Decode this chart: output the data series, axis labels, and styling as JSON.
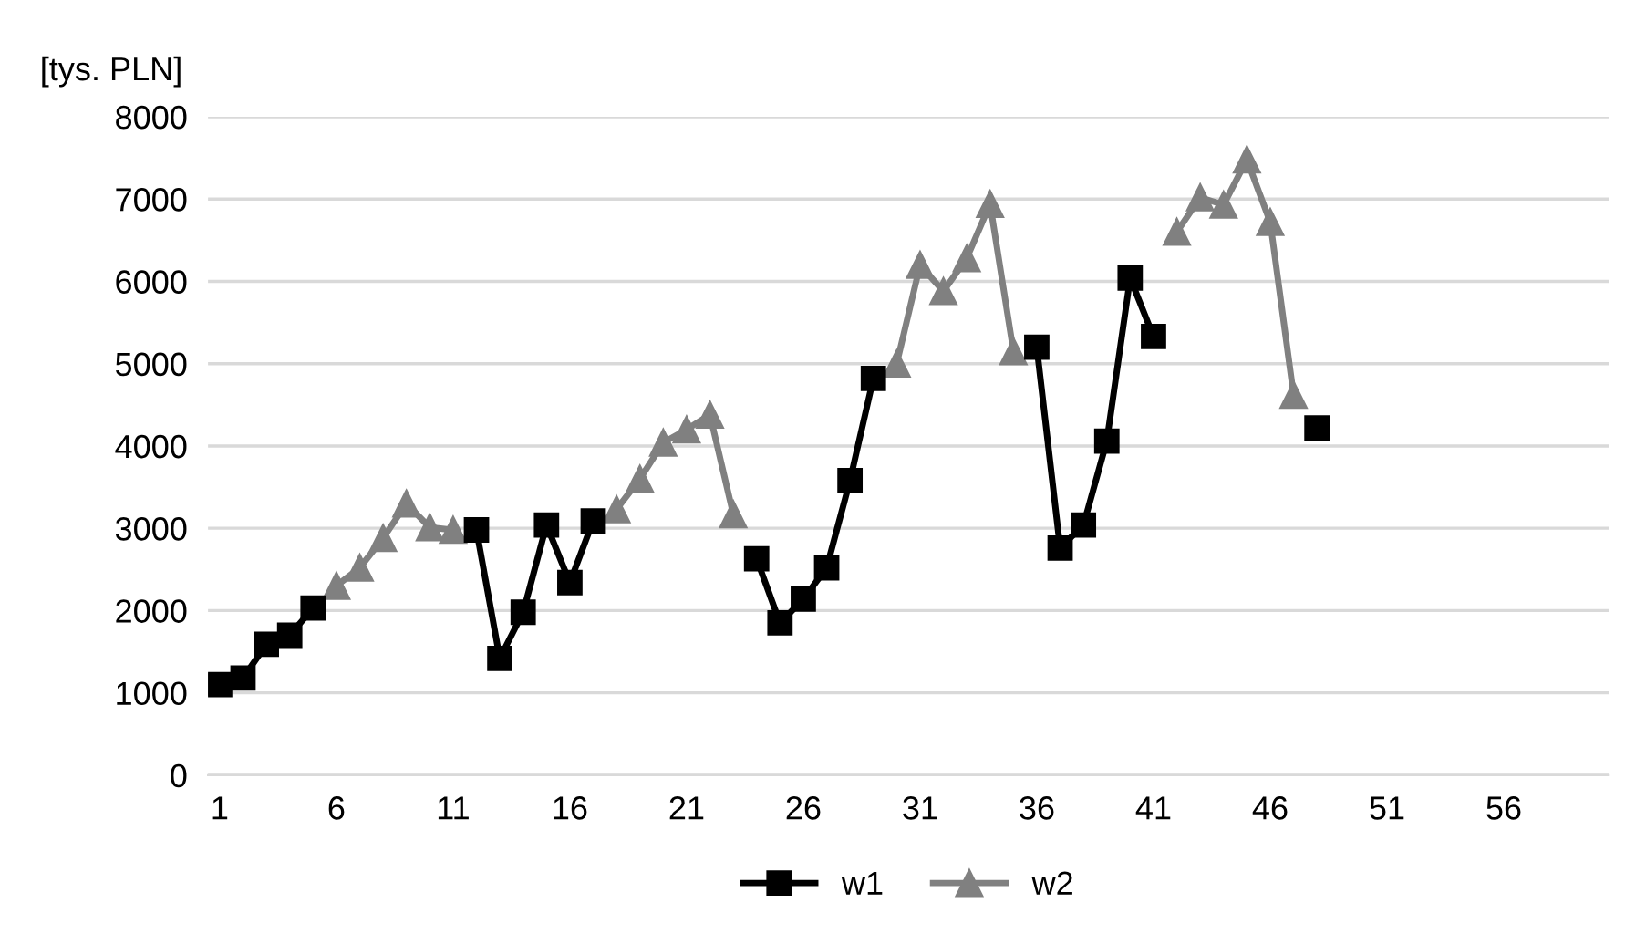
{
  "chart_data": {
    "type": "line",
    "ylabel": "[tys. PLN]",
    "categories": [
      "1",
      null,
      null,
      null,
      null,
      "6",
      null,
      null,
      null,
      null,
      "11",
      null,
      null,
      null,
      null,
      "16",
      null,
      null,
      null,
      null,
      "21",
      null,
      null,
      null,
      null,
      "26",
      null,
      null,
      null,
      null,
      "31",
      null,
      null,
      null,
      null,
      "36",
      null,
      null,
      null,
      null,
      "41",
      null,
      null,
      null,
      null,
      "46",
      null,
      null,
      null,
      null,
      "51",
      null,
      null,
      null,
      null,
      "56",
      null,
      null,
      null,
      null
    ],
    "series": [
      {
        "name": "w2",
        "color": "#808080",
        "marker": "triangle",
        "values": [
          null,
          null,
          null,
          null,
          null,
          2300,
          2520,
          2880,
          3300,
          3010,
          2980,
          null,
          null,
          null,
          null,
          null,
          null,
          3230,
          3600,
          4040,
          4200,
          4380,
          3170,
          null,
          null,
          null,
          null,
          null,
          null,
          5000,
          6200,
          5880,
          6280,
          6940,
          5150,
          null,
          null,
          null,
          null,
          null,
          null,
          6600,
          7020,
          6930,
          7480,
          6720,
          4620,
          null,
          null,
          null,
          null,
          null,
          null,
          null,
          null,
          null,
          null,
          null,
          null,
          null
        ]
      },
      {
        "name": "w1",
        "color": "#000000",
        "marker": "square",
        "values": [
          1100,
          1180,
          1590,
          1700,
          2030,
          null,
          null,
          null,
          null,
          null,
          null,
          2980,
          1420,
          1980,
          3040,
          2340,
          3090,
          null,
          null,
          null,
          null,
          null,
          null,
          2630,
          1850,
          2140,
          2520,
          3580,
          4820,
          null,
          null,
          null,
          null,
          null,
          null,
          5200,
          2760,
          3040,
          4060,
          6040,
          5330,
          null,
          null,
          null,
          null,
          null,
          null,
          4220,
          null,
          null,
          null,
          null,
          null,
          null,
          null,
          null,
          null,
          null,
          null,
          null
        ]
      }
    ],
    "ylim": [
      0,
      8000
    ],
    "yticks": [
      0,
      1000,
      2000,
      3000,
      4000,
      5000,
      6000,
      7000,
      8000
    ],
    "grid": "y",
    "legend": "bottom"
  }
}
